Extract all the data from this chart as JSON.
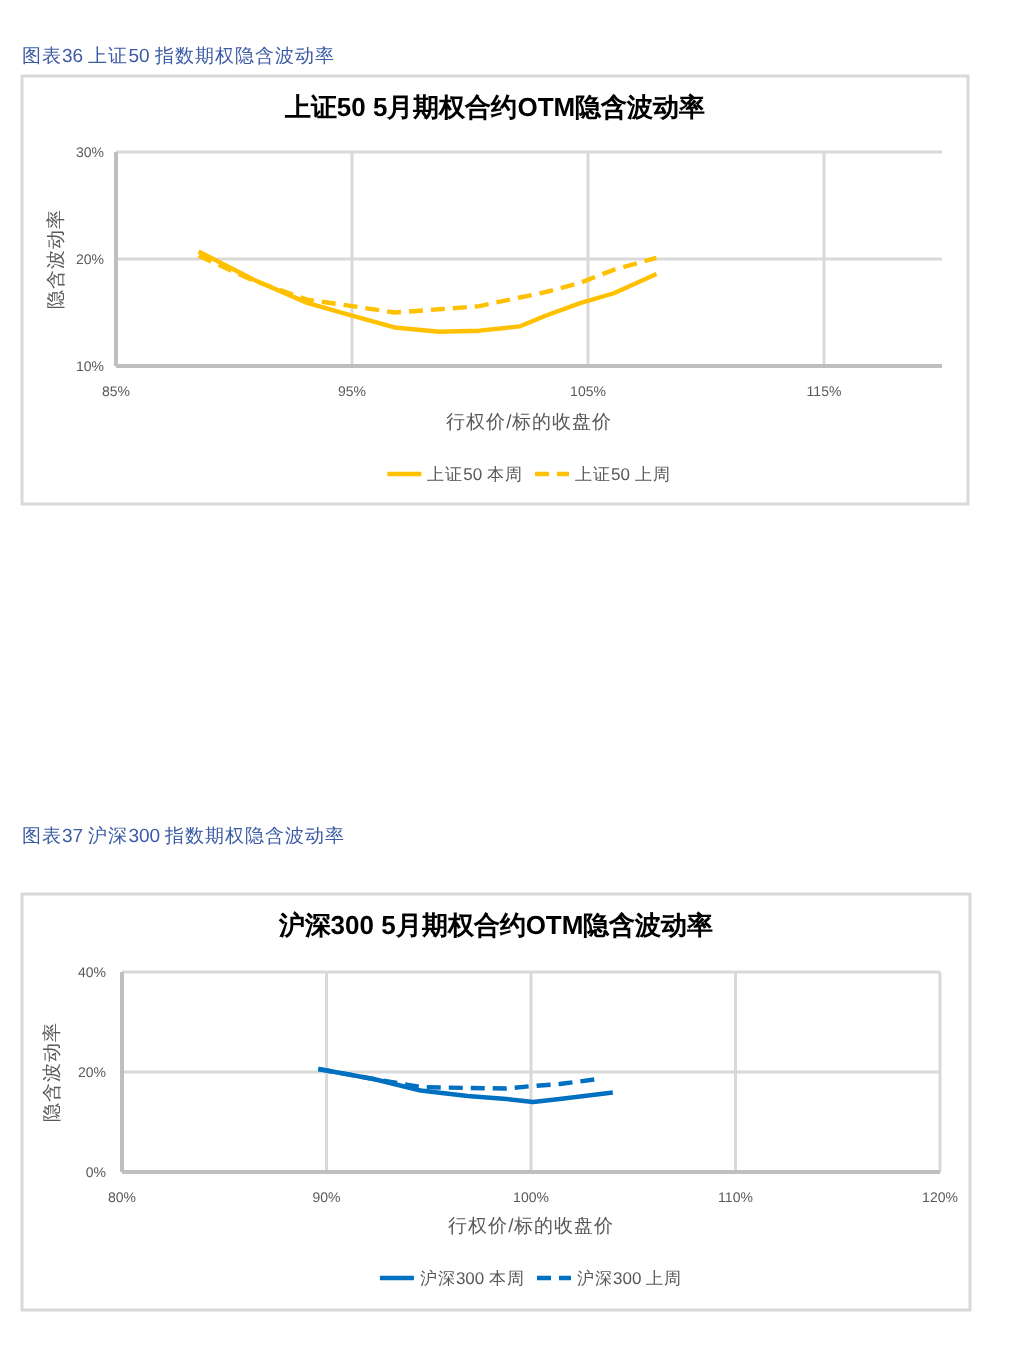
{
  "chart_data": [
    {
      "type": "line",
      "title": "上证50  5月期权合约OTM隐含波动率",
      "xlabel": "行权价/标的收盘价",
      "ylabel": "隐含波动率",
      "annotations": [
        "图表36 上证50 指数期权隐含波动率"
      ],
      "series": [
        {
          "name": "上证50 本周",
          "color": "#ffc000",
          "line_style": "solid",
          "x": [
            88.5,
            90.8,
            93.1,
            95.0,
            96.8,
            98.7,
            100.4,
            102.1,
            103.2,
            104.7,
            106.1,
            107.9
          ],
          "values": [
            20.7,
            18.1,
            15.9,
            14.7,
            13.6,
            13.2,
            13.3,
            13.7,
            14.7,
            15.9,
            16.8,
            18.6
          ]
        },
        {
          "name": "上证50 上周",
          "color": "#ffc000",
          "line_style": "dashed",
          "x": [
            88.5,
            90.8,
            93.1,
            95.0,
            96.8,
            98.7,
            100.4,
            102.1,
            103.2,
            104.7,
            106.1,
            107.9
          ],
          "values": [
            20.3,
            18.0,
            16.2,
            15.6,
            15.0,
            15.3,
            15.6,
            16.4,
            16.9,
            17.8,
            19.0,
            20.1
          ]
        }
      ],
      "xlim": [
        85,
        120
      ],
      "xticks": [
        {
          "value": 85,
          "label": "85%"
        },
        {
          "value": 95,
          "label": "95%"
        },
        {
          "value": 105,
          "label": "105%"
        },
        {
          "value": 115,
          "label": "115%"
        }
      ],
      "ylim": [
        10,
        30
      ],
      "yticks": [
        {
          "value": 10,
          "label": "10%"
        },
        {
          "value": 20,
          "label": "20%"
        },
        {
          "value": 30,
          "label": "30%"
        }
      ],
      "grid": true,
      "legend": "bottom"
    },
    {
      "type": "line",
      "title": "沪深300  5月期权合约OTM隐含波动率",
      "xlabel": "行权价/标的收盘价",
      "ylabel": "隐含波动率",
      "annotations": [
        "图表37 沪深300 指数期权隐含波动率"
      ],
      "series": [
        {
          "name": "沪深300 本周",
          "color": "#0070c0",
          "line_style": "solid",
          "x": [
            89.6,
            92.3,
            94.6,
            96.9,
            98.8,
            100.1,
            101.4,
            104.0
          ],
          "values": [
            20.6,
            18.6,
            16.3,
            15.2,
            14.6,
            14.0,
            14.6,
            15.9
          ]
        },
        {
          "name": "沪深300 上周",
          "color": "#0070c0",
          "line_style": "dashed",
          "x": [
            89.6,
            92.3,
            94.6,
            96.9,
            98.8,
            100.1,
            101.4,
            103.3
          ],
          "values": [
            20.6,
            18.6,
            17.0,
            16.8,
            16.7,
            17.2,
            17.6,
            18.6
          ]
        }
      ],
      "xlim": [
        80,
        120
      ],
      "xticks": [
        {
          "value": 80,
          "label": "80%"
        },
        {
          "value": 90,
          "label": "90%"
        },
        {
          "value": 100,
          "label": "100%"
        },
        {
          "value": 110,
          "label": "110%"
        },
        {
          "value": 120,
          "label": "120%"
        }
      ],
      "ylim": [
        0,
        40
      ],
      "yticks": [
        {
          "value": 0,
          "label": "0%"
        },
        {
          "value": 20,
          "label": "20%"
        },
        {
          "value": 40,
          "label": "40%"
        }
      ],
      "grid": true,
      "legend": "bottom"
    }
  ]
}
